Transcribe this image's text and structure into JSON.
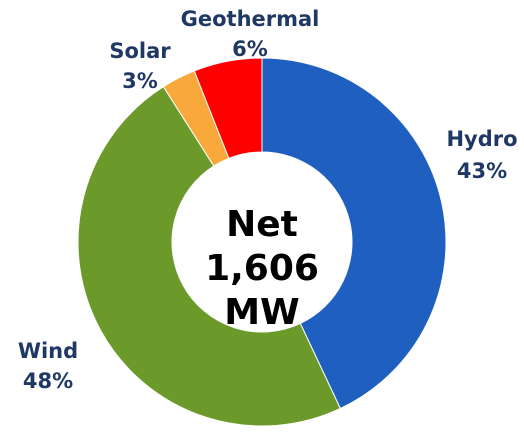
{
  "chart_data": {
    "type": "donut",
    "categories": [
      "Hydro",
      "Wind",
      "Solar",
      "Geothermal"
    ],
    "values": [
      43,
      48,
      3,
      6
    ],
    "value_labels": [
      "43%",
      "48%",
      "3%",
      "6%"
    ],
    "colors": [
      "#1f5fbf",
      "#6b9a2b",
      "#f9a83c",
      "#ff0000"
    ],
    "center_text": [
      "Net",
      "1,606",
      "MW"
    ]
  }
}
